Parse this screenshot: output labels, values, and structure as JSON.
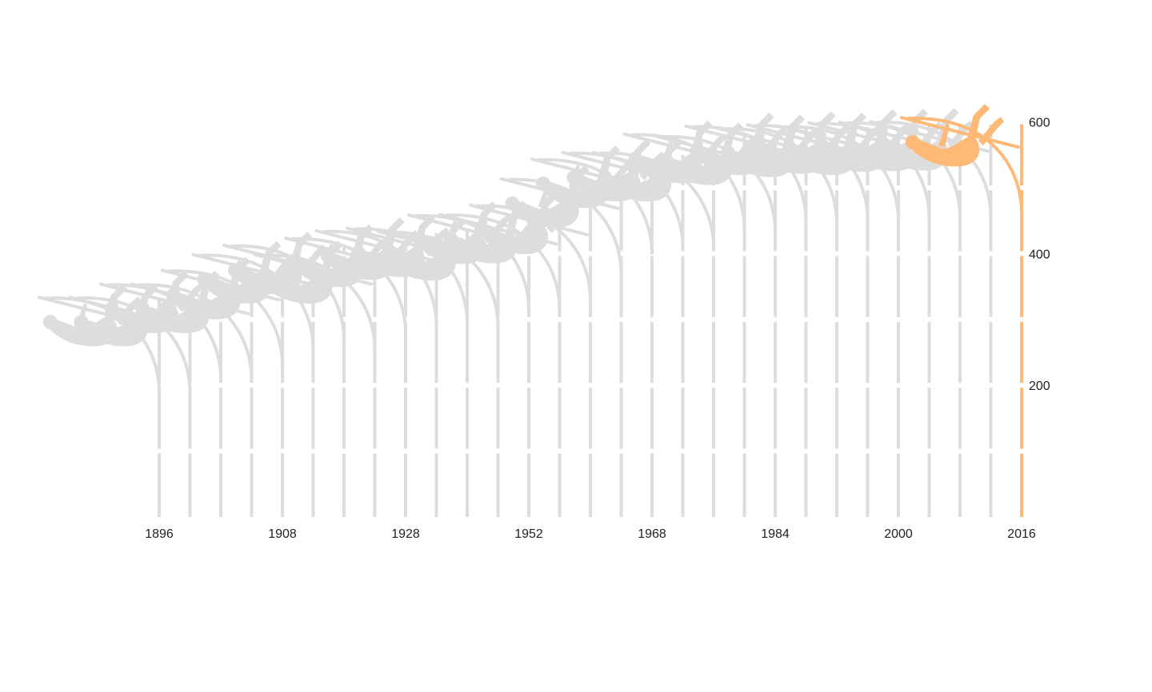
{
  "chart_data": {
    "type": "line",
    "title": "",
    "xlabel": "",
    "ylabel": "",
    "x_ticks": [
      "1896",
      "1908",
      "1928",
      "1952",
      "1968",
      "1984",
      "2000",
      "2016"
    ],
    "y_ticks": [
      "200",
      "400",
      "600"
    ],
    "ylim": [
      0,
      600
    ],
    "series": [
      {
        "x": [
          1896,
          1900,
          1904,
          1906,
          1908,
          1912,
          1920,
          1924,
          1928,
          1932,
          1936,
          1948,
          1952,
          1956,
          1960,
          1964,
          1968,
          1972,
          1976,
          1980,
          1984,
          1988,
          1992,
          1996,
          2000,
          2004,
          2008,
          2012,
          2016
        ],
        "values": [
          330,
          330,
          350,
          350,
          371,
          395,
          409,
          395,
          420,
          431,
          435,
          430,
          455,
          456,
          470,
          510,
          540,
          550,
          550,
          578,
          575,
          590,
          587,
          592,
          590,
          595,
          596,
          597,
          603
        ]
      }
    ],
    "highlight": {
      "x": 2016,
      "color": "#FFB977"
    },
    "colors": {
      "muted": "#DDDDDD",
      "highlight": "#FFB977",
      "gap": "#FFFFFF"
    },
    "grid": false,
    "legend": "none"
  }
}
